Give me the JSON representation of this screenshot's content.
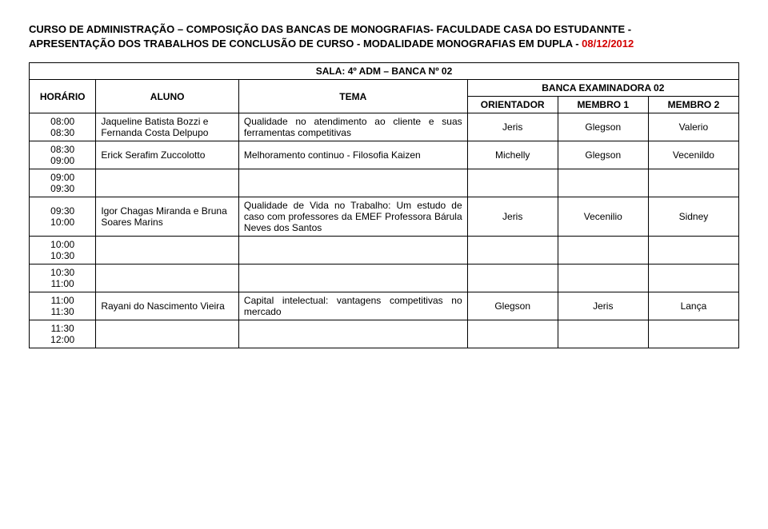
{
  "header": {
    "line1_a": "CURSO DE ADMINISTRAÇÃO",
    "dash": " – ",
    "line1_b": "COMPOSIÇÃO DAS BANCAS DE MONOGRAFIAS- FACULDADE CASA DO ESTUDANNTE -",
    "line2": "APRESENTAÇÃO DOS TRABALHOS DE CONCLUSÃO DE CURSO - MODALIDADE MONOGRAFIAS EM DUPLA - ",
    "date": "08/12/2012"
  },
  "table": {
    "sala": "SALA: 4º ADM – BANCA Nº 02",
    "col_horario": "HORÁRIO",
    "col_aluno": "ALUNO",
    "col_tema": "TEMA",
    "col_banca": "BANCA EXAMINADORA 02",
    "col_orient": "ORIENTADOR",
    "col_m1": "MEMBRO 1",
    "col_m2": "MEMBRO 2",
    "rows": [
      {
        "h1": "08:00",
        "h2": "08:30",
        "aluno": "Jaqueline Batista Bozzi e Fernanda Costa Delpupo",
        "tema": "Qualidade no atendimento ao cliente e suas ferramentas competitivas",
        "orient": "Jeris",
        "m1": "Glegson",
        "m2": "Valerio"
      },
      {
        "h1": "08:30",
        "h2": "09:00",
        "aluno": "Erick Serafim Zuccolotto",
        "tema": "Melhoramento continuo - Filosofia Kaizen",
        "orient": "Michelly",
        "m1": "Glegson",
        "m2": "Vecenildo"
      },
      {
        "h1": "09:00",
        "h2": "09:30",
        "aluno": "",
        "tema": "",
        "orient": "",
        "m1": "",
        "m2": ""
      },
      {
        "h1": "09:30",
        "h2": "10:00",
        "aluno": "Igor Chagas Miranda e Bruna Soares Marins",
        "tema": "Qualidade de Vida no Trabalho: Um estudo de caso com professores da EMEF Professora Bárula Neves dos Santos",
        "orient": "Jeris",
        "m1": "Vecenilio",
        "m2": "Sidney"
      },
      {
        "h1": "10:00",
        "h2": "10:30",
        "aluno": "",
        "tema": "",
        "orient": "",
        "m1": "",
        "m2": ""
      },
      {
        "h1": "10:30",
        "h2": "11:00",
        "aluno": "",
        "tema": "",
        "orient": "",
        "m1": "",
        "m2": ""
      },
      {
        "h1": "11:00",
        "h2": "11:30",
        "aluno": "Rayani do Nascimento Vieira",
        "tema": "Capital intelectual: vantagens competitivas no mercado",
        "orient": "Glegson",
        "m1": "Jeris",
        "m2": "Lança"
      },
      {
        "h1": "11:30",
        "h2": "12:00",
        "aluno": "",
        "tema": "",
        "orient": "",
        "m1": "",
        "m2": ""
      }
    ]
  }
}
